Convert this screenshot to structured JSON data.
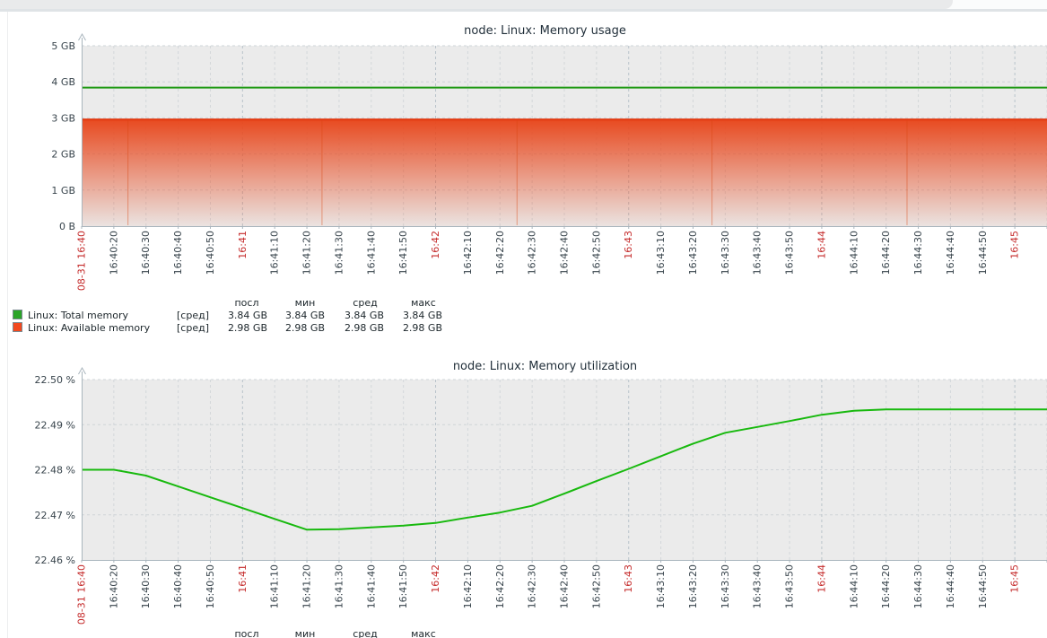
{
  "colors": {
    "page_bg": "#ffffff",
    "top_strip": "#e9eaeb",
    "top_strip_edge": "#dfe3e6",
    "plot_bg": "#ebebeb",
    "grid": "#d3d7da",
    "grid_h": "#cfd4d8",
    "grid_minute": "#b9c3ca",
    "axis": "#a9b5bd",
    "tick_text": "#38444c",
    "tick_text_red": "#c52b2b",
    "title_text": "#1f2d38",
    "legend_text": "#1c262b",
    "swatch_border": "#7c8a91"
  },
  "chart_data": [
    {
      "type": "line+area",
      "title": "node: Linux: Memory usage",
      "ylim": [
        0,
        5
      ],
      "ylabel_unit": "GB",
      "grid": true,
      "legend_position": "bottom",
      "y_ticks": [
        "5 GB",
        "4 GB",
        "3 GB",
        "2 GB",
        "1 GB",
        "0 B"
      ],
      "x_start_label": "08-31 16:40",
      "x_tick_labels": [
        "08-31 16:40",
        "16:40:20",
        "16:40:30",
        "16:40:40",
        "16:40:50",
        "16:41",
        "16:41:10",
        "16:41:20",
        "16:41:30",
        "16:41:40",
        "16:41:50",
        "16:42",
        "16:42:10",
        "16:42:20",
        "16:42:30",
        "16:42:40",
        "16:42:50",
        "16:43",
        "16:43:10",
        "16:43:20",
        "16:43:30",
        "16:43:40",
        "16:43:50",
        "16:44",
        "16:44:10",
        "16:44:20",
        "16:44:30",
        "16:44:40",
        "16:44:50",
        "16:45"
      ],
      "x_tick_red_indices": [
        0,
        5,
        11,
        17,
        23,
        29
      ],
      "series": [
        {
          "name": "Linux: Total memory",
          "draw": "line",
          "color": "#1f9a14",
          "value_gb": 3.84
        },
        {
          "name": "Linux: Available memory",
          "draw": "gradient-area",
          "color": "#e8491f",
          "edge_color": "#e23a12",
          "value_gb": 2.98,
          "vertical_seam_fractions": [
            0.048,
            0.249,
            0.451,
            0.653,
            0.855
          ]
        }
      ],
      "legend": {
        "headers": [
          "посл",
          "мин",
          "сред",
          "макс"
        ],
        "rows": [
          {
            "color": "#2ba428",
            "label": "Linux: Total memory",
            "fn": "[сред]",
            "values": [
              "3.84 GB",
              "3.84 GB",
              "3.84 GB",
              "3.84 GB"
            ]
          },
          {
            "color": "#f2491f",
            "label": "Linux: Available memory",
            "fn": "[сред]",
            "values": [
              "2.98 GB",
              "2.98 GB",
              "2.98 GB",
              "2.98 GB"
            ]
          }
        ]
      }
    },
    {
      "type": "line",
      "title": "node: Linux: Memory utilization",
      "ylim": [
        22.46,
        22.5
      ],
      "ylabel_unit": "%",
      "grid": true,
      "legend_position": "bottom",
      "y_ticks": [
        "22.50 %",
        "22.49 %",
        "22.48 %",
        "22.47 %",
        "22.46 %"
      ],
      "x_start_label": "08-31 16:40",
      "x_tick_labels": [
        "08-31 16:40",
        "16:40:20",
        "16:40:30",
        "16:40:40",
        "16:40:50",
        "16:41",
        "16:41:10",
        "16:41:20",
        "16:41:30",
        "16:41:40",
        "16:41:50",
        "16:42",
        "16:42:10",
        "16:42:20",
        "16:42:30",
        "16:42:40",
        "16:42:50",
        "16:43",
        "16:43:10",
        "16:43:20",
        "16:43:30",
        "16:43:40",
        "16:43:50",
        "16:44",
        "16:44:10",
        "16:44:20",
        "16:44:30",
        "16:44:40",
        "16:44:50",
        "16:45"
      ],
      "x_tick_red_indices": [
        0,
        5,
        11,
        17,
        23,
        29
      ],
      "series": [
        {
          "name": "Linux: Memory utilization",
          "draw": "line",
          "color": "#18b90e",
          "x": [
            "16:40:10",
            "16:40:20",
            "16:40:30",
            "16:40:40",
            "16:40:50",
            "16:41:00",
            "16:41:10",
            "16:41:20",
            "16:41:30",
            "16:41:40",
            "16:41:50",
            "16:42:00",
            "16:42:10",
            "16:42:20",
            "16:42:30",
            "16:42:40",
            "16:42:50",
            "16:43:00",
            "16:43:10",
            "16:43:20",
            "16:43:30",
            "16:43:40",
            "16:43:50",
            "16:44:00",
            "16:44:10",
            "16:44:20",
            "16:44:30",
            "16:44:40",
            "16:44:50",
            "16:45:00",
            "16:45:10"
          ],
          "values": [
            22.48,
            22.48,
            22.4787,
            22.4763,
            22.4739,
            22.4715,
            22.4691,
            22.4667,
            22.4668,
            22.4672,
            22.4676,
            22.4682,
            22.4694,
            22.4705,
            22.472,
            22.4747,
            22.4775,
            22.4802,
            22.483,
            22.4858,
            22.4882,
            22.4895,
            22.4908,
            22.4922,
            22.4931,
            22.4934,
            22.4934,
            22.4934,
            22.4934,
            22.4934,
            22.4934
          ]
        }
      ],
      "legend": {
        "headers": [
          "посл",
          "мин",
          "сред",
          "макс"
        ]
      }
    }
  ]
}
